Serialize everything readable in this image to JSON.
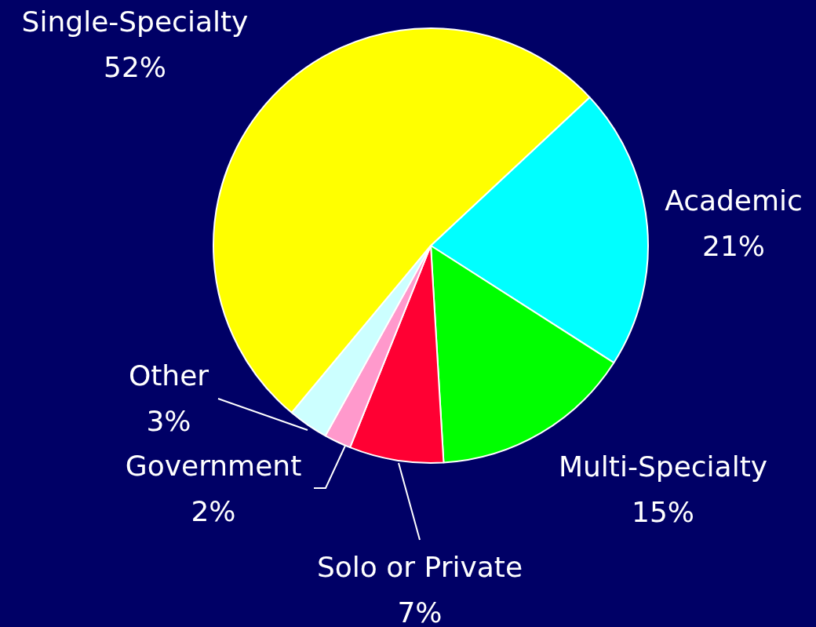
{
  "chart_data": {
    "type": "pie",
    "categories": [
      "Academic",
      "Multi-Specialty",
      "Solo or Private",
      "Government",
      "Other",
      "Single-Specialty"
    ],
    "values": [
      21,
      15,
      7,
      2,
      3,
      52
    ],
    "value_labels": [
      "21%",
      "15%",
      "7%",
      "2%",
      "3%",
      "52%"
    ],
    "colors": [
      "#00ffff",
      "#00ff00",
      "#ff0033",
      "#ff99cc",
      "#ccffff",
      "#ffff00"
    ]
  }
}
